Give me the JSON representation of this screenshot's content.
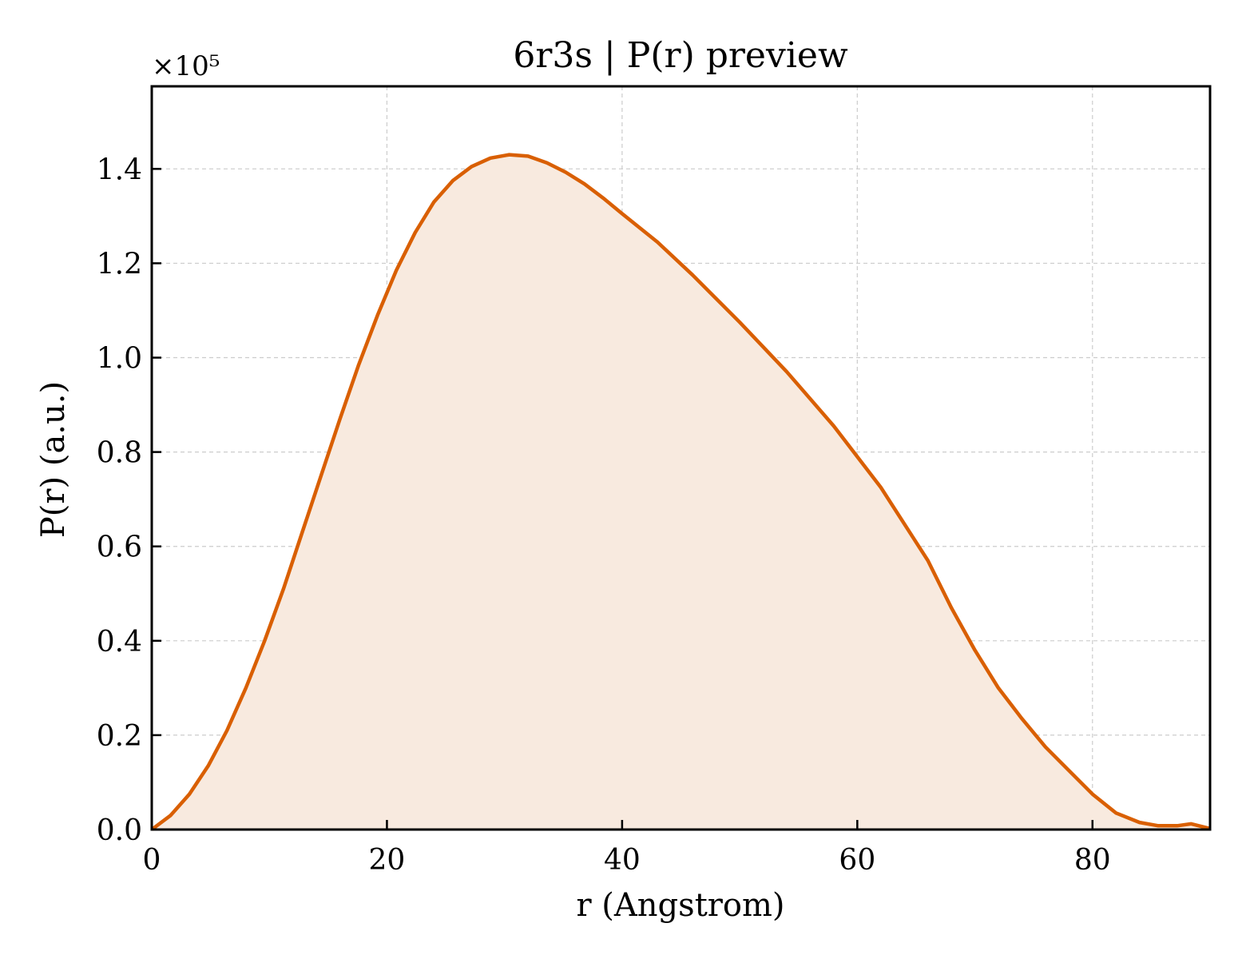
{
  "chart_data": {
    "type": "area",
    "title": "6r3s | P(r) preview",
    "xlabel": "r (Angstrom)",
    "ylabel": "P(r) (a.u.)",
    "y_offset_label": "×10⁵",
    "y_scale": 100000,
    "xlim": [
      0,
      90
    ],
    "ylim": [
      0,
      1.575
    ],
    "xticks": [
      0,
      20,
      40,
      60,
      80
    ],
    "xtick_labels": [
      "0",
      "20",
      "40",
      "60",
      "80"
    ],
    "yticks": [
      0.0,
      0.2,
      0.4,
      0.6,
      0.8,
      1.0,
      1.2,
      1.4
    ],
    "ytick_labels": [
      "0.0",
      "0.2",
      "0.4",
      "0.6",
      "0.8",
      "1.0",
      "1.2",
      "1.4"
    ],
    "grid": true,
    "line_color": "#d95f02",
    "fill_color": "#f8eadf",
    "series": [
      {
        "x": [
          0,
          1.6,
          3.2,
          4.8,
          6.4,
          8.0,
          9.6,
          11.2,
          12.8,
          14.4,
          16.0,
          17.6,
          19.2,
          20.8,
          22.4,
          24.0,
          25.6,
          27.2,
          28.8,
          30.4,
          32.0,
          33.6,
          35.2,
          36.8,
          38.4,
          40.0,
          43.0,
          46.0,
          50.0,
          54.0,
          58.0,
          62.0,
          66.0,
          68.0,
          70.0,
          72.0,
          74.0,
          76.0,
          78.0,
          80.0,
          82.0,
          84.0,
          85.6,
          87.2,
          88.4,
          90.0
        ],
        "y": [
          0.0,
          0.03,
          0.075,
          0.135,
          0.21,
          0.3,
          0.4,
          0.51,
          0.63,
          0.75,
          0.87,
          0.985,
          1.09,
          1.185,
          1.265,
          1.33,
          1.375,
          1.405,
          1.423,
          1.43,
          1.427,
          1.413,
          1.393,
          1.368,
          1.338,
          1.305,
          1.245,
          1.175,
          1.075,
          0.97,
          0.855,
          0.725,
          0.57,
          0.47,
          0.38,
          0.3,
          0.235,
          0.175,
          0.125,
          0.075,
          0.035,
          0.015,
          0.008,
          0.008,
          0.012,
          0.002
        ]
      }
    ]
  }
}
